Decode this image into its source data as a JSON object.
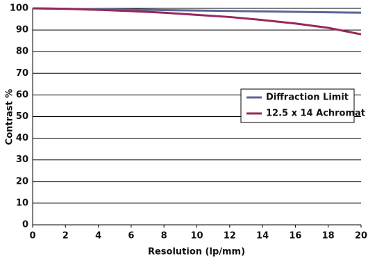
{
  "chart_data": {
    "type": "line",
    "x_label": "Resolution (lp/mm)",
    "y_label": "Contrast %",
    "x": [
      0,
      2,
      4,
      6,
      8,
      10,
      12,
      14,
      16,
      18,
      20
    ],
    "series": [
      {
        "name": "Diffraction Limit",
        "color": "#5b6597",
        "values": [
          100,
          99.8,
          99.6,
          99.4,
          99.2,
          99,
          98.8,
          98.6,
          98.4,
          98.2,
          98
        ]
      },
      {
        "name": "12.5 x 14 Achromat",
        "color": "#98285a",
        "values": [
          100,
          99.8,
          99.3,
          98.7,
          98,
          97,
          96,
          94.6,
          93,
          91,
          88
        ]
      }
    ],
    "xlim": [
      0,
      20
    ],
    "xticks": [
      0,
      2,
      4,
      6,
      8,
      10,
      12,
      14,
      16,
      18,
      20
    ],
    "ylim": [
      0,
      100
    ],
    "yticks": [
      0,
      10,
      20,
      30,
      40,
      50,
      60,
      70,
      80,
      90,
      100
    ],
    "grid": true,
    "legend": "right"
  }
}
